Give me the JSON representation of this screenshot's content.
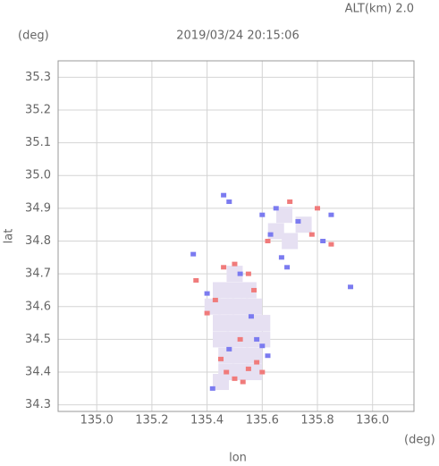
{
  "chart_data": {
    "type": "scatter",
    "title": "2019/03/24 20:15:06",
    "subtitle": "ALT(km) 2.0",
    "x_label": "lon",
    "y_label": "lat",
    "x_unit": "(deg)",
    "y_unit": "(deg)",
    "xlim": [
      134.86,
      136.15
    ],
    "ylim": [
      34.28,
      35.35
    ],
    "xticks": [
      {
        "value": 135,
        "label": "135.0"
      },
      135.2,
      135.4,
      135.6,
      135.8,
      {
        "value": 136,
        "label": "136.0"
      }
    ],
    "yticks": [
      34.3,
      34.4,
      34.5,
      34.6,
      34.7,
      34.8,
      34.9,
      {
        "value": 35,
        "label": "35.0"
      },
      35.1,
      35.2,
      35.3
    ],
    "grid": true,
    "series": [
      {
        "color": "#e6e0f2",
        "x": [
          135.45,
          135.5,
          135.55,
          135.42,
          135.47,
          135.52,
          135.57,
          135.45,
          135.5,
          135.55,
          135.6,
          135.45,
          135.5,
          135.55,
          135.6,
          135.47,
          135.52,
          135.57,
          135.47,
          135.52,
          135.57,
          135.5,
          135.65,
          135.7,
          135.75,
          135.68,
          135.45
        ],
        "values": [
          34.65,
          34.65,
          34.65,
          34.6,
          34.6,
          34.6,
          34.6,
          34.55,
          34.55,
          34.55,
          34.55,
          34.5,
          34.5,
          34.5,
          34.5,
          34.45,
          34.45,
          34.45,
          34.4,
          34.4,
          34.4,
          34.7,
          34.83,
          34.8,
          34.85,
          34.88,
          34.37
        ]
      },
      {
        "color": "#7b7bf0",
        "x": [
          135.42,
          135.48,
          135.46,
          135.6,
          135.63,
          135.67,
          135.69,
          135.82,
          135.85,
          135.92,
          135.6,
          135.62,
          135.4,
          135.56,
          135.52,
          135.35,
          135.73,
          135.58,
          135.48,
          135.65
        ],
        "values": [
          34.35,
          34.92,
          34.94,
          34.88,
          34.82,
          34.75,
          34.72,
          34.8,
          34.88,
          34.66,
          34.48,
          34.45,
          34.64,
          34.57,
          34.7,
          34.76,
          34.86,
          34.5,
          34.47,
          34.9
        ]
      },
      {
        "color": "#f07b7b",
        "x": [
          135.36,
          135.5,
          135.47,
          135.55,
          135.58,
          135.43,
          135.55,
          135.5,
          135.78,
          135.8,
          135.85,
          135.62,
          135.4,
          135.6,
          135.52,
          135.45,
          135.53,
          135.7,
          135.46,
          135.57
        ],
        "values": [
          34.68,
          34.38,
          34.4,
          34.41,
          34.43,
          34.62,
          34.7,
          34.73,
          34.82,
          34.9,
          34.79,
          34.8,
          34.58,
          34.4,
          34.5,
          34.44,
          34.37,
          34.92,
          34.72,
          34.65
        ]
      }
    ]
  }
}
